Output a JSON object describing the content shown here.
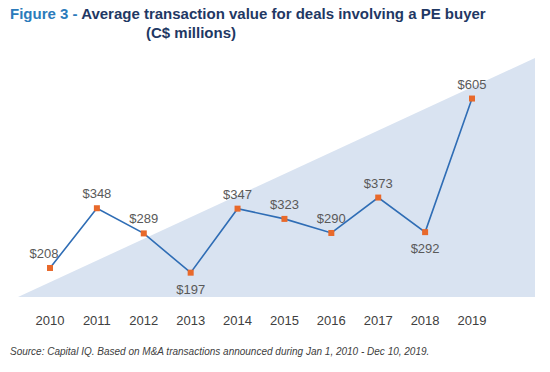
{
  "chart_data": {
    "type": "line",
    "title": "Figure 3 - Average transaction value for deals involving a PE buyer (C$ millions)",
    "categories": [
      "2010",
      "2011",
      "2012",
      "2013",
      "2014",
      "2015",
      "2016",
      "2017",
      "2018",
      "2019"
    ],
    "values": [
      208,
      348,
      289,
      197,
      347,
      323,
      290,
      373,
      292,
      605
    ],
    "value_labels": [
      "$208",
      "$348",
      "$289",
      "$197",
      "$347",
      "$323",
      "$290",
      "$373",
      "$292",
      "$605"
    ],
    "color": "#2f6db5",
    "marker": "square",
    "ylim": [
      140,
      700
    ],
    "data_labels": true,
    "tick_labels": "x",
    "grid": false,
    "annotations": [
      "Source: Capital IQ. Based on M&A transactions announced during Jan 1, 2010 - Dec 10, 2019."
    ]
  }
}
